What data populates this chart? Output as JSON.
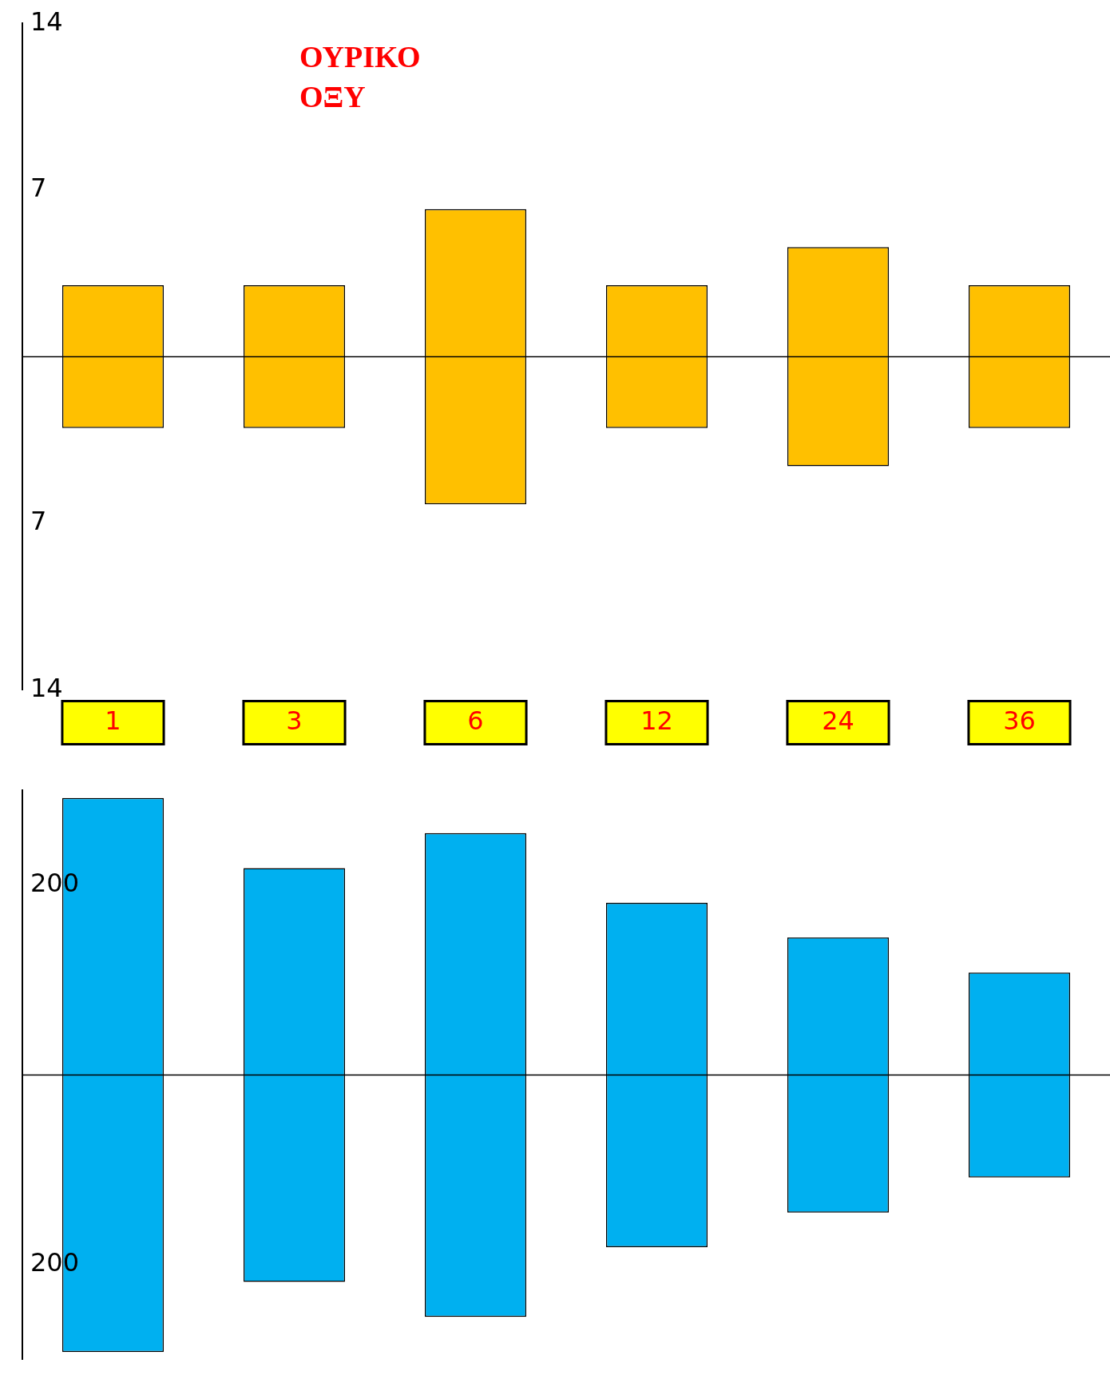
{
  "chart_data": [
    {
      "type": "bar",
      "categories": [
        "1",
        "3",
        "6",
        "12",
        "24",
        "36"
      ],
      "values": [
        6,
        6,
        12.4,
        6,
        9.2,
        6
      ],
      "base": [
        -3,
        -3,
        -6.2,
        -3,
        -4.6,
        -3
      ],
      "color": "#ffc000",
      "ylim": [
        -14,
        14
      ],
      "yticks": [
        14,
        7,
        {
          "value": -7,
          "label": "7"
        },
        {
          "value": -14,
          "label": "14"
        }
      ],
      "ref_lines": [
        {
          "axis": "y",
          "value": 0
        }
      ],
      "annotations": [
        "ΟΥΡΙΚΟ ΟΞΥ"
      ],
      "grid": false,
      "legend": false
    },
    {
      "type": "bar",
      "categories": [
        "1",
        "3",
        "6",
        "12",
        "24",
        "36"
      ],
      "values": [
        584,
        436,
        510,
        363,
        290,
        216
      ],
      "base": [
        -292,
        -218,
        -255,
        -181.5,
        -145,
        -108
      ],
      "color": "#00b0f0",
      "ylim": [
        -300,
        300
      ],
      "yticks": [
        200,
        {
          "value": -200,
          "label": "200"
        }
      ],
      "ref_lines": [
        {
          "axis": "y",
          "value": 0
        }
      ],
      "tick_labels": "y",
      "grid": false,
      "legend": false
    }
  ]
}
